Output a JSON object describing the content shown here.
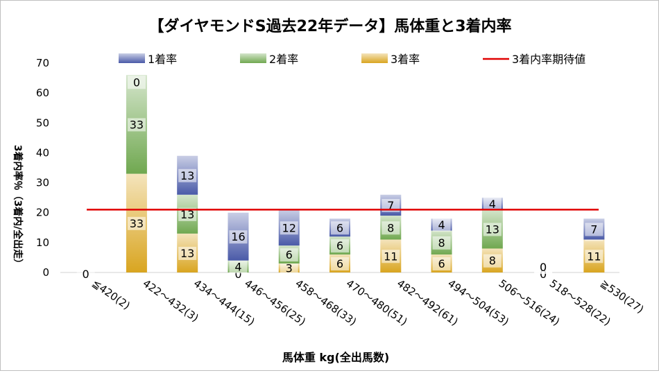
{
  "chart_data": {
    "type": "bar",
    "stacked": true,
    "title": "【ダイヤモンドS過去22年データ】馬体重と3着内率",
    "xlabel": "馬体重 kg(全出馬数)",
    "ylabel": "3着内率％（3着内/全出走）",
    "ylim": [
      0,
      70
    ],
    "yticks": [
      "0",
      "10",
      "20",
      "30",
      "40",
      "50",
      "60",
      "70"
    ],
    "grid": false,
    "legend_position": "top",
    "categories": [
      "≦420(2)",
      "422～432(3)",
      "434～444(15)",
      "446～456(25)",
      "458～468(33)",
      "470～480(51)",
      "482～492(61)",
      "494～504(53)",
      "506～516(24)",
      "518～528(22)",
      "≧530(27)"
    ],
    "series": [
      {
        "name": "3着率",
        "color": "#d9a520",
        "values": [
          0,
          33,
          13,
          0,
          3,
          6,
          11,
          6,
          8,
          0,
          11
        ]
      },
      {
        "name": "2着率",
        "color": "#70a850",
        "values": [
          0,
          33,
          13,
          4,
          6,
          6,
          8,
          8,
          13,
          0,
          0
        ]
      },
      {
        "name": "1着率",
        "color": "#4a5aa8",
        "values": [
          0,
          0,
          13,
          16,
          12,
          6,
          7,
          4,
          4,
          0,
          7
        ]
      }
    ],
    "data_labels": {
      "3着率": [
        "0",
        "33",
        "13",
        "0",
        "3",
        "6",
        "11",
        "6",
        "8",
        "0",
        "11"
      ],
      "2着率": [
        "",
        "33",
        "13",
        "4",
        "6",
        "6",
        "8",
        "8",
        "13",
        "0",
        "0"
      ],
      "1着率": [
        "",
        "0",
        "13",
        "16",
        "12",
        "6",
        "7",
        "4",
        "4",
        "0",
        "7"
      ]
    },
    "reference_line": {
      "name": "3着内率期待値",
      "value": 21,
      "color": "#e00000"
    }
  }
}
